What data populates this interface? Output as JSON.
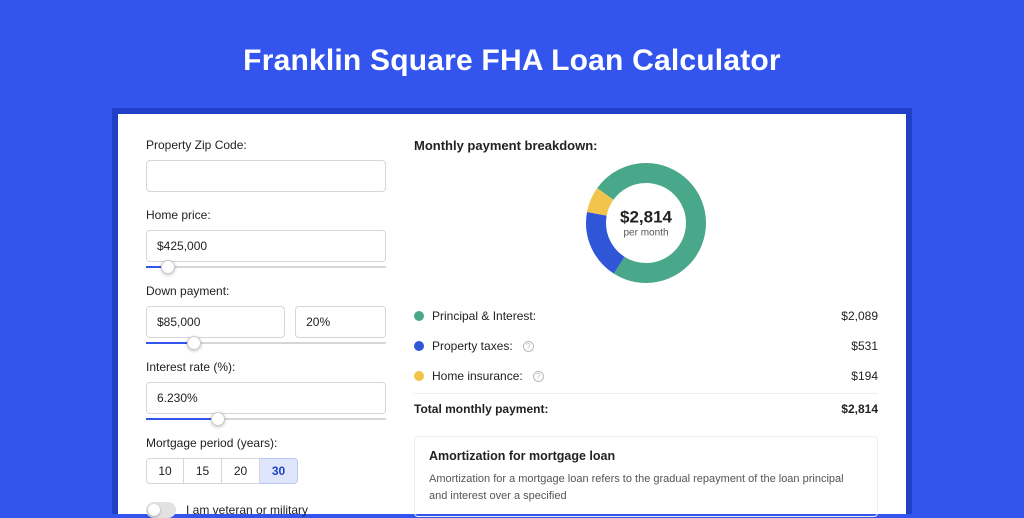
{
  "page": {
    "title": "Franklin Square FHA Loan Calculator",
    "bg_color": "#3355ee",
    "card_shadow_color": "#2140c8"
  },
  "form": {
    "zip_label": "Property Zip Code:",
    "zip_value": "",
    "home_price_label": "Home price:",
    "home_price_value": "$425,000",
    "home_price_slider_pct": 9,
    "down_label": "Down payment:",
    "down_value": "$85,000",
    "down_pct_value": "20%",
    "down_slider_pct": 20,
    "rate_label": "Interest rate (%):",
    "rate_value": "6.230%",
    "rate_slider_pct": 30,
    "period_label": "Mortgage period (years):",
    "periods": [
      "10",
      "15",
      "20",
      "30"
    ],
    "period_selected": "30",
    "veteran_label": "I am veteran or military",
    "veteran_on": false
  },
  "breakdown": {
    "title": "Monthly payment breakdown:",
    "center_amount": "$2,814",
    "center_sub": "per month",
    "donut": {
      "size": 120,
      "thickness": 20,
      "slices": [
        {
          "label": "Principal & Interest:",
          "value": "$2,089",
          "color": "#4aa88a",
          "pct": 74.2,
          "has_info": false
        },
        {
          "label": "Property taxes:",
          "value": "$531",
          "color": "#2e56d6",
          "pct": 18.9,
          "has_info": true
        },
        {
          "label": "Home insurance:",
          "value": "$194",
          "color": "#f2c44b",
          "pct": 6.9,
          "has_info": true
        }
      ],
      "start_angle_deg": -55
    },
    "total_label": "Total monthly payment:",
    "total_value": "$2,814"
  },
  "amort": {
    "title": "Amortization for mortgage loan",
    "body": "Amortization for a mortgage loan refers to the gradual repayment of the loan principal and interest over a specified "
  }
}
